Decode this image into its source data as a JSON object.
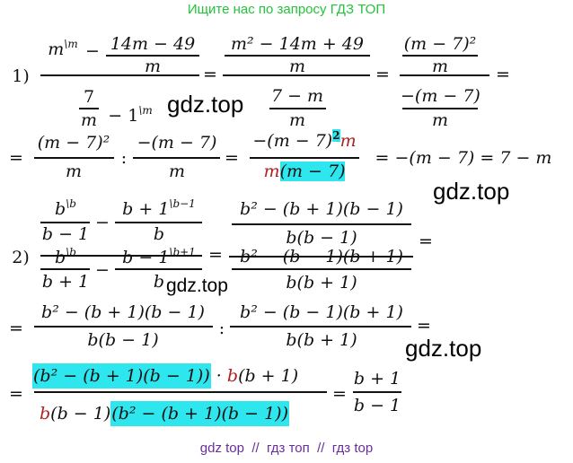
{
  "header": "Ищите нас по запросу ГДЗ ТОП",
  "footer": "gdz top  //  гдз топ  //  гдз top",
  "watermark": "gdz.top",
  "colors": {
    "header": "#22c43a",
    "footer": "#6a2e9a",
    "highlight": "#2ee6ee",
    "accent_red": "#b02020"
  },
  "p1": {
    "label": "1)",
    "eq": "=",
    "colon": ":",
    "minus": "−",
    "a_m": "m",
    "a_m_sup": "\\m",
    "a_frac_num": "14m − 49",
    "a_frac_den": "m",
    "a_seven": "7",
    "a_seven_den": "m",
    "a_one": "− 1",
    "a_one_sup": "\\m",
    "b_num": "m² − 14m + 49",
    "b_num_den": "m",
    "b_den_num": "7 − m",
    "b_den_den": "m",
    "c_num": "(m − 7)²",
    "c_num_den": "m",
    "c_den_num": "−(m − 7)",
    "c_den_den": "m",
    "d1_num": "(m − 7)²",
    "d1_den": "m",
    "d2_num": "−(m − 7)",
    "d2_den": "m",
    "d3_num": "−(m − 7)",
    "d3_num_sup": "2",
    "d3_num_m": "m",
    "d3_den_m": "m",
    "d3_den_rest": "(m − 7)",
    "result": "= −(m − 7) = 7 − m"
  },
  "p2": {
    "label": "2)",
    "eq": "=",
    "colon": ":",
    "minus": "−",
    "b": "b",
    "b_sup": "\\b",
    "bm1": "b − 1",
    "bp1": "b + 1",
    "n2_num": "b + 1",
    "n2_num_sup": "\\b−1",
    "n2_den": "b",
    "d2_num": "b − 1",
    "d2_num_sup": "\\b+1",
    "d2_den": "b",
    "r_num_num": "b² − (b + 1)(b − 1)",
    "r_num_den": "b(b − 1)",
    "r_den_num": "b² − (b − 1)(b + 1)",
    "r_den_den": "b(b + 1)",
    "s1_num": "b² − (b + 1)(b − 1)",
    "s1_den": "b(b − 1)",
    "s2_num": "b² − (b − 1)(b + 1)",
    "s2_den": "b(b + 1)",
    "f_num_hl": "(b² − (b + 1)(b − 1))",
    "f_num_dot": " · ",
    "f_num_b": "b",
    "f_num_rest": "(b + 1)",
    "f_den_b": "b",
    "f_den_rest": "(b − 1)",
    "f_den_hl": "(b² − (b + 1)(b − 1))",
    "ans_num": "b + 1",
    "ans_den": "b − 1"
  }
}
